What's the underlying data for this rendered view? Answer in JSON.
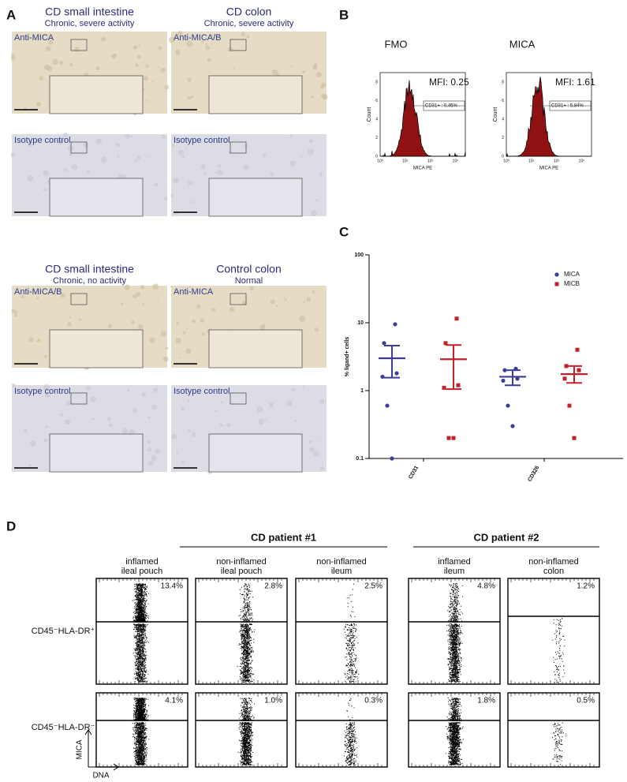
{
  "panels": {
    "A": {
      "label": "A",
      "images": [
        {
          "title": "CD small intestine",
          "subtitle": "Chronic, severe activity",
          "stain": "Anti-MICA",
          "control": "Isotype control"
        },
        {
          "title": "CD colon",
          "subtitle": "Chronic, severe activity",
          "stain": "Anti-MICA/B",
          "control": "Isotype control"
        },
        {
          "title": "CD small intestine",
          "subtitle": "Chronic, no activity",
          "stain": "Anti-MICA/B",
          "control": "Isotype control"
        },
        {
          "title": "Control colon",
          "subtitle": "Normal",
          "stain": "Anti-MICA",
          "control": "Isotype control"
        }
      ]
    },
    "B": {
      "label": "B",
      "y_label": "Count",
      "x_label": "MICA PE",
      "yticks": [
        "0",
        "2",
        "4",
        "6",
        "8"
      ],
      "xticks": [
        "10⁰",
        "10¹",
        "10²",
        "10³"
      ],
      "histograms": [
        {
          "title": "FMO",
          "mfi": "MFI:  0.25",
          "gate": "CD31+ : 0,45%"
        },
        {
          "title": "MICA",
          "mfi": "MFI:  1.61",
          "gate": "CD31+ : 5,84%"
        }
      ]
    },
    "C": {
      "label": "C"
    },
    "D": {
      "label": "D",
      "y_axis": "MICA",
      "x_axis": "DNA",
      "rows": [
        "CD45⁻HLA-DR⁺",
        "CD45⁻HLA-DR⁻"
      ],
      "groups": [
        {
          "name": "CD patient #1",
          "columns": [
            {
              "lines": [
                "inflamed",
                "ileal pouch"
              ],
              "percents": [
                "13.4%",
                "4.1%"
              ]
            },
            {
              "lines": [
                "non-inflamed",
                "ileal pouch"
              ],
              "percents": [
                "2.8%",
                "1.0%"
              ]
            },
            {
              "lines": [
                "non-inflamed",
                "ileum"
              ],
              "percents": [
                "2.5%",
                "0.3%"
              ]
            }
          ]
        },
        {
          "name": "CD patient #2",
          "columns": [
            {
              "lines": [
                "inflamed",
                "ileum"
              ],
              "percents": [
                "4.8%",
                "1.8%"
              ]
            },
            {
              "lines": [
                "non-inflamed",
                "colon"
              ],
              "percents": [
                "1.2%",
                "0.5%"
              ]
            }
          ]
        }
      ]
    }
  },
  "chart_data": {
    "type": "scatter",
    "y_label": "% ligand+ cells",
    "log_y": true,
    "categories": [
      "CD31",
      "CD326"
    ],
    "ylim": [
      0.1,
      100
    ],
    "yticks": [
      0.1,
      1,
      10,
      100
    ],
    "legend": "top-right",
    "series": [
      {
        "name": "MICA",
        "color": "#3d3d9e",
        "values": [
          [
            9.5,
            5,
            1.8,
            1.6,
            0.6,
            0.1
          ],
          [
            2.1,
            2.0,
            1.5,
            1.4,
            0.6,
            0.3
          ]
        ],
        "mean": [
          3.0,
          1.6
        ],
        "error_high": [
          4.6,
          2.0
        ],
        "error_low": [
          1.55,
          1.2
        ]
      },
      {
        "name": "MICB",
        "color": "#c4202c",
        "values": [
          [
            11.5,
            5,
            1.2,
            1.1,
            0.2,
            0.2
          ],
          [
            4.0,
            2.3,
            2.0,
            1.5,
            0.6,
            0.2
          ]
        ],
        "mean": [
          2.9,
          1.75
        ],
        "error_high": [
          4.7,
          2.3
        ],
        "error_low": [
          1.05,
          1.3
        ]
      }
    ]
  }
}
